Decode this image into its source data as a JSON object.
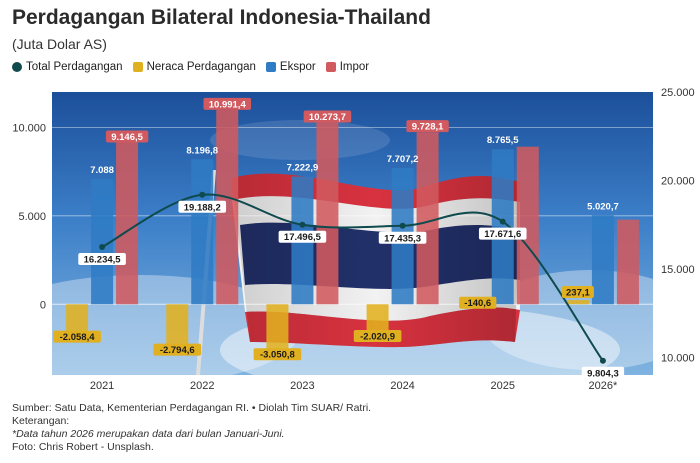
{
  "header": {
    "title": "Perdagangan Bilateral Indonesia-Thailand",
    "subtitle": "(Juta Dolar AS)"
  },
  "legend": [
    {
      "label": "Total Perdagangan",
      "color": "#0f4a4d",
      "shape": "circle"
    },
    {
      "label": "Neraca Perdagangan",
      "color": "#e1b020",
      "shape": "square"
    },
    {
      "label": "Ekspor",
      "color": "#2f7bc4",
      "shape": "square"
    },
    {
      "label": "Impor",
      "color": "#d05a5f",
      "shape": "square"
    }
  ],
  "chart_data": {
    "type": "bar",
    "categories": [
      "2021",
      "2022",
      "2023",
      "2024",
      "2025",
      "2026*"
    ],
    "series": [
      {
        "name": "Neraca Perdagangan",
        "axis": "left",
        "color": "#e1b020",
        "values": [
          -2058.4,
          -2794.6,
          -3050.8,
          -2020.9,
          -140.6,
          237.1
        ],
        "labels": [
          "-2.058,4",
          "-2.794,6",
          "-3.050,8",
          "-2.020,9",
          "-140,6",
          "237,1"
        ]
      },
      {
        "name": "Ekspor",
        "axis": "left",
        "color": "#2f7bc4",
        "values": [
          7088,
          8196.8,
          7222.9,
          7707.2,
          8765.5,
          5020.7
        ],
        "labels": [
          "7.088",
          "8.196,8",
          "7.222,9",
          "7.707,2",
          "8.765,5",
          "5.020,7"
        ]
      },
      {
        "name": "Impor",
        "axis": "left",
        "color": "#d05a5f",
        "values": [
          9146.5,
          10991.4,
          10273.7,
          9728.1,
          8906.1,
          4783.6
        ],
        "labels": [
          "9.146,5",
          "10.991,4",
          "10.273,7",
          "9.728,1",
          "",
          ""
        ]
      },
      {
        "name": "Total Perdagangan",
        "axis": "right",
        "type": "line",
        "color": "#0f4a4d",
        "values": [
          16234.5,
          19188.2,
          17496.5,
          17435.3,
          17671.6,
          9804.3
        ],
        "labels": [
          "16.234,5",
          "19.188,2",
          "17.496,5",
          "17.435,3",
          "17.671,6",
          "9.804,3"
        ]
      }
    ],
    "left_axis": {
      "ylim": [
        -4000,
        12000
      ],
      "ticks": [
        0,
        5000,
        10000
      ],
      "tick_labels": [
        "0",
        "5.000",
        "10.000"
      ]
    },
    "right_axis": {
      "ylim": [
        9000,
        25000
      ],
      "ticks": [
        10000,
        15000,
        20000,
        25000
      ],
      "tick_labels": [
        "10.000",
        "15.000",
        "20.000",
        "25.000"
      ]
    },
    "grid": true,
    "legend_position": "top-left"
  },
  "footer": {
    "source": "Sumber: Satu Data, Kementerian Perdagangan RI. • Diolah Tim SUAR/ Ratri.",
    "notes_label": "Keterangan:",
    "note": "*Data tahun 2026 merupakan data dari bulan Januari-Juni.",
    "photo": "Foto: Chris Robert - Unsplash."
  }
}
